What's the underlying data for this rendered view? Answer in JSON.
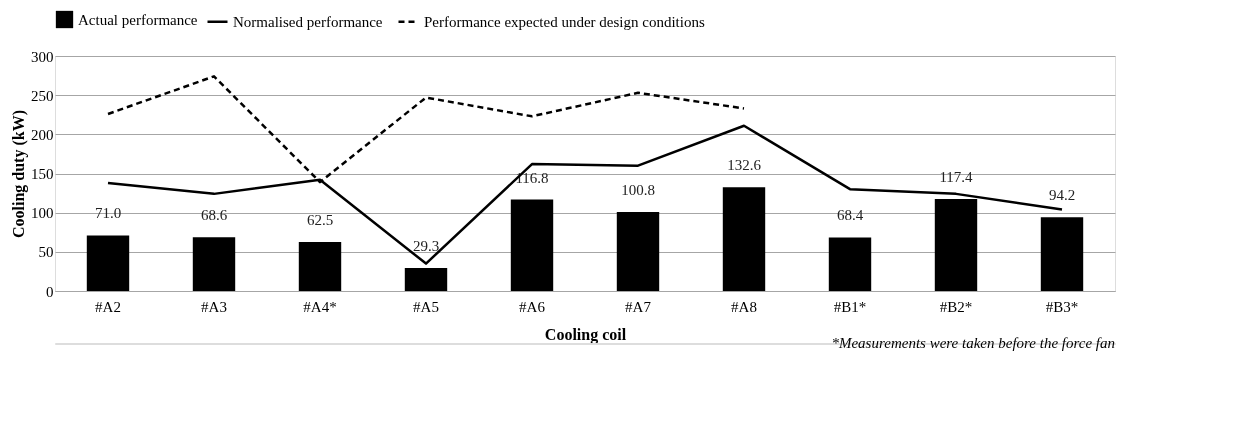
{
  "chart_data": {
    "type": "bar",
    "xlabel": "Cooling coil",
    "ylabel": "Cooling duty (kW)",
    "categories": [
      "#A2",
      "#A3",
      "#A4*",
      "#A5",
      "#A6",
      "#A7",
      "#A8",
      "#B1*",
      "#B2*",
      "#B3*"
    ],
    "series": [
      {
        "name": "Actual performance",
        "color": "#000000",
        "values": [
          71.0,
          68.6,
          62.5,
          29.3,
          116.8,
          100.8,
          132.6,
          68.4,
          117.4,
          94.2
        ],
        "value_labels": [
          "71.0",
          "68.6",
          "62.5",
          "29.3",
          "116.8",
          "100.8",
          "132.6",
          "68.4",
          "117.4",
          "94.2"
        ]
      },
      {
        "name": "Normalised performance",
        "type": "line",
        "color": "#000000",
        "line_style": "solid",
        "values": [
          138,
          124,
          142,
          35,
          162,
          160,
          211,
          130,
          124,
          104
        ]
      },
      {
        "name": "Performance expected under design conditions",
        "type": "line",
        "color": "#000000",
        "line_style": "dashed",
        "values": [
          226,
          274,
          139,
          247,
          223,
          253,
          233,
          null,
          null,
          null
        ]
      }
    ],
    "ylim": [
      0,
      300
    ],
    "yticks": [
      0,
      50,
      100,
      150,
      200,
      250,
      300
    ],
    "grid": "y",
    "legend": "top",
    "annotations": [
      "*Measurements were taken before the force fan"
    ]
  }
}
